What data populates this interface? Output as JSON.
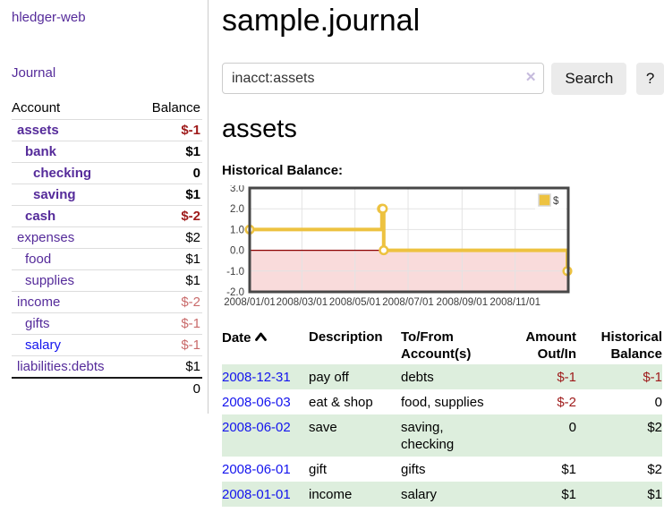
{
  "app_title": "hledger-web",
  "colors": {
    "link_purple": "#552b9a",
    "link_blue": "#1414ee",
    "negative_strong": "#9e1a1a",
    "negative_soft": "#c96b6b",
    "row_green": "#ddeedd",
    "series_gold": "#edc240"
  },
  "sidebar": {
    "journal_link": "Journal",
    "accounts_table": {
      "account_header": "Account",
      "balance_header": "Balance",
      "rows": [
        {
          "name": "assets",
          "depth": 1,
          "bold": true,
          "balance": "$-1",
          "link_color": "purple"
        },
        {
          "name": "bank",
          "depth": 2,
          "bold": true,
          "balance": "$1",
          "link_color": "purple"
        },
        {
          "name": "checking",
          "depth": 3,
          "bold": true,
          "balance": "0",
          "link_color": "purple"
        },
        {
          "name": "saving",
          "depth": 3,
          "bold": true,
          "balance": "$1",
          "link_color": "purple"
        },
        {
          "name": "cash",
          "depth": 2,
          "bold": true,
          "balance": "$-2",
          "link_color": "purple"
        },
        {
          "name": "expenses",
          "depth": 1,
          "bold": false,
          "balance": "$2",
          "link_color": "purple"
        },
        {
          "name": "food",
          "depth": 2,
          "bold": false,
          "balance": "$1",
          "link_color": "purple"
        },
        {
          "name": "supplies",
          "depth": 2,
          "bold": false,
          "balance": "$1",
          "link_color": "purple"
        },
        {
          "name": "income",
          "depth": 1,
          "bold": false,
          "balance": "$-2",
          "link_color": "purple"
        },
        {
          "name": "gifts",
          "depth": 2,
          "bold": false,
          "balance": "$-1",
          "link_color": "purple"
        },
        {
          "name": "salary",
          "depth": 2,
          "bold": false,
          "balance": "$-1",
          "link_color": "blue"
        },
        {
          "name": "liabilities:debts",
          "depth": 1,
          "bold": false,
          "balance": "$1",
          "link_color": "purple"
        }
      ],
      "total": "0"
    }
  },
  "main": {
    "title": "sample.journal",
    "search": {
      "value": "inacct:assets",
      "clear_icon": "✕",
      "search_button": "Search",
      "help_button": "?"
    },
    "account_heading": "assets",
    "chart_label": "Historical Balance:"
  },
  "chart_data": {
    "type": "line",
    "step": true,
    "title": "Historical Balance",
    "series": [
      {
        "name": "$",
        "color": "#edc240",
        "points": [
          [
            "2008-01-01",
            1
          ],
          [
            "2008-06-01",
            2
          ],
          [
            "2008-06-02",
            2
          ],
          [
            "2008-06-03",
            0
          ],
          [
            "2008-12-31",
            -1
          ]
        ]
      }
    ],
    "xlim": [
      "2008-01-01",
      "2009-01-01"
    ],
    "ylim": [
      -2,
      3
    ],
    "y_ticks": [
      3.0,
      2.0,
      1.0,
      0.0,
      -1.0,
      -2.0
    ],
    "x_ticks": [
      "2008/01/01",
      "2008/03/01",
      "2008/05/01",
      "2008/07/01",
      "2008/09/01",
      "2008/11/01"
    ],
    "grid": true,
    "legend": {
      "label": "$",
      "position": "top-right"
    },
    "zero_line_color": "#8b0000",
    "negative_region_color": "#f9dbdb",
    "border_color": "#474747"
  },
  "register_table": {
    "headers": {
      "date": "Date",
      "description": "Description",
      "accounts": "To/From Account(s)",
      "amount": "Amount Out/In",
      "balance": "Historical Balance"
    },
    "rows": [
      {
        "date": "2008-12-31",
        "description": "pay off",
        "accounts": "debts",
        "amount": "$-1",
        "balance": "$-1"
      },
      {
        "date": "2008-06-03",
        "description": "eat & shop",
        "accounts": "food, supplies",
        "amount": "$-2",
        "balance": "0"
      },
      {
        "date": "2008-06-02",
        "description": "save",
        "accounts": "saving, checking",
        "amount": "0",
        "balance": "$2"
      },
      {
        "date": "2008-06-01",
        "description": "gift",
        "accounts": "gifts",
        "amount": "$1",
        "balance": "$2"
      },
      {
        "date": "2008-01-01",
        "description": "income",
        "accounts": "salary",
        "amount": "$1",
        "balance": "$1"
      }
    ]
  }
}
